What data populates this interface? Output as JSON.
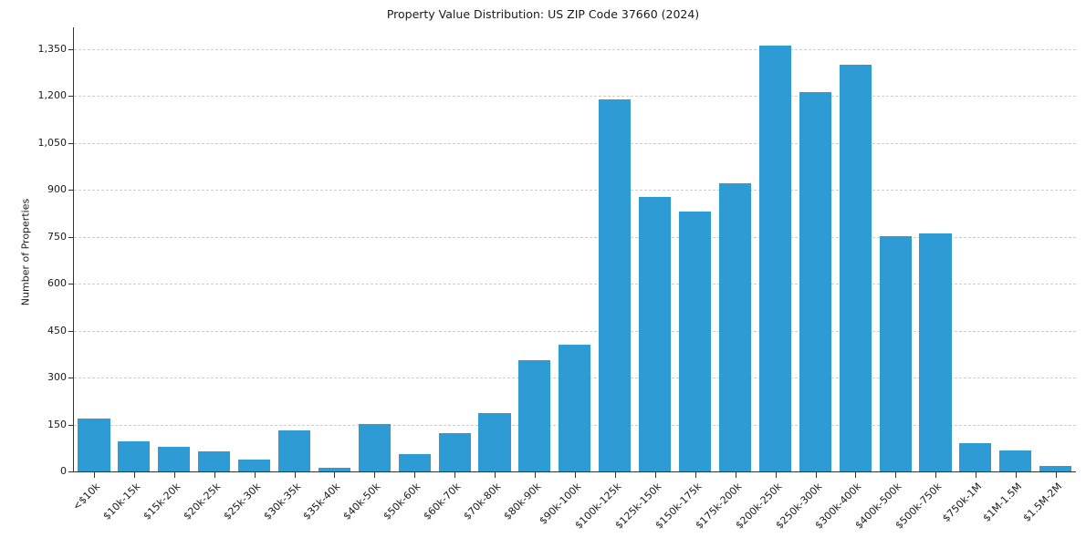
{
  "chart_data": {
    "type": "bar",
    "title": "Property Value Distribution: US ZIP Code 37660 (2024)",
    "xlabel": "",
    "ylabel": "Number of Properties",
    "ylim": [
      0,
      1420
    ],
    "grid": true,
    "legend": "none",
    "bar_color": "#2e9bd5",
    "categories": [
      "<$10k",
      "$10k-15k",
      "$15k-20k",
      "$20k-25k",
      "$25k-30k",
      "$30k-35k",
      "$35k-40k",
      "$40k-50k",
      "$50k-60k",
      "$60k-70k",
      "$70k-80k",
      "$80k-90k",
      "$90k-100k",
      "$100k-125k",
      "$125k-150k",
      "$150k-175k",
      "$175k-200k",
      "$200k-250k",
      "$250k-300k",
      "$300k-400k",
      "$400k-500k",
      "$500k-750k",
      "$750k-1M",
      "$1M-1.5M",
      "$1.5M-2M"
    ],
    "values": [
      170,
      95,
      78,
      65,
      38,
      130,
      12,
      152,
      55,
      122,
      188,
      355,
      405,
      1190,
      878,
      832,
      920,
      1362,
      1212,
      1300,
      753,
      762,
      90,
      68,
      18
    ],
    "y_ticks": [
      0,
      150,
      300,
      450,
      600,
      750,
      900,
      1050,
      1200,
      1350
    ],
    "y_tick_labels": [
      "0",
      "150",
      "300",
      "450",
      "600",
      "750",
      "900",
      "1,050",
      "1,200",
      "1,350"
    ]
  }
}
